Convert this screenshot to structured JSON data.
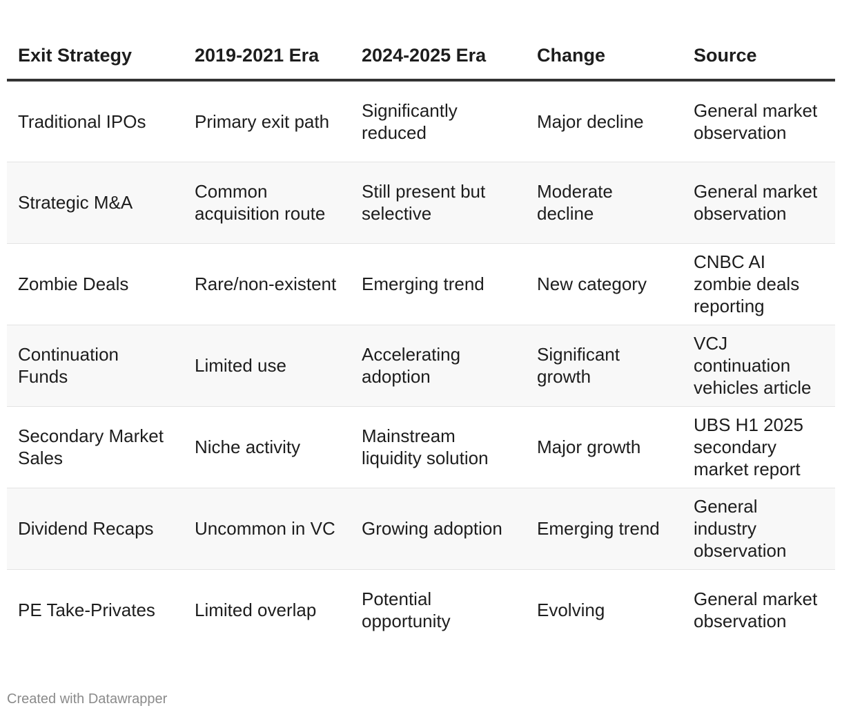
{
  "chart_data": {
    "type": "table",
    "columns": [
      "Exit Strategy",
      "2019-2021 Era",
      "2024-2025 Era",
      "Change",
      "Source"
    ],
    "rows": [
      [
        "Traditional IPOs",
        "Primary exit path",
        "Significantly reduced",
        "Major decline",
        "General market observation"
      ],
      [
        "Strategic M&A",
        "Common acquisition route",
        "Still present but selective",
        "Moderate decline",
        "General market observation"
      ],
      [
        "Zombie Deals",
        "Rare/non-existent",
        "Emerging trend",
        "New category",
        "CNBC AI zombie deals reporting"
      ],
      [
        "Continuation Funds",
        "Limited use",
        "Accelerating adoption",
        "Significant growth",
        "VCJ continuation vehicles article"
      ],
      [
        "Secondary Market Sales",
        "Niche activity",
        "Mainstream liquidity solution",
        "Major growth",
        "UBS H1 2025 secondary market report"
      ],
      [
        "Dividend Recaps",
        "Uncommon in VC",
        "Growing adoption",
        "Emerging trend",
        "General industry observation"
      ],
      [
        "PE Take-Privates",
        "Limited overlap",
        "Potential opportunity",
        "Evolving",
        "General market observation"
      ]
    ],
    "header_border_color": "#333333",
    "stripe_color": "#f8f8f8"
  },
  "footer": {
    "credit": "Created with Datawrapper"
  }
}
